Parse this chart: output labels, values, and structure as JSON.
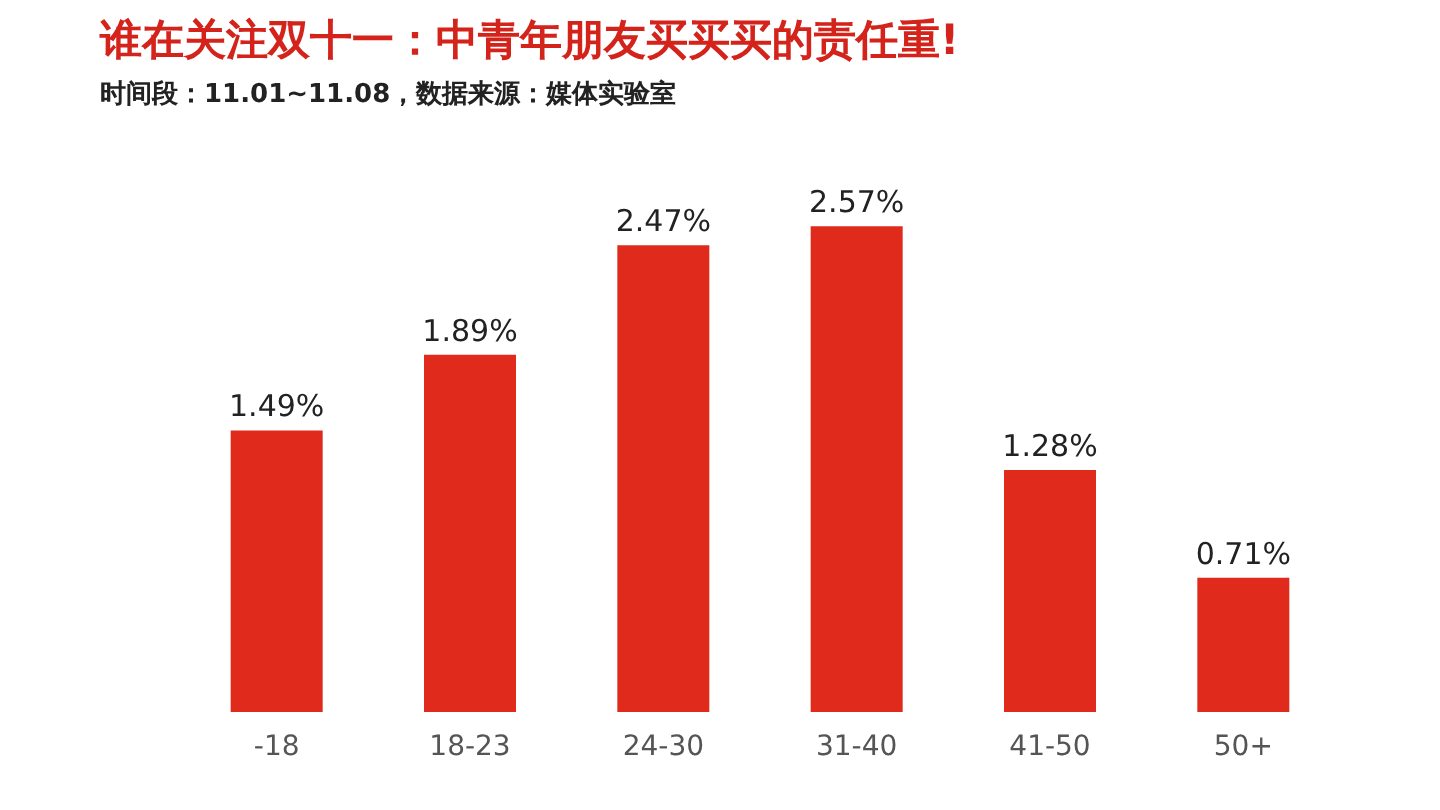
{
  "chart_data": {
    "type": "bar",
    "title": "谁在关注双十一：中青年朋友买买买的责任重!",
    "subtitle": "时间段：11.01~11.08，数据来源：媒体实验室",
    "categories": [
      "-18",
      "18-23",
      "24-30",
      "31-40",
      "41-50",
      "50+"
    ],
    "values": [
      1.49,
      1.89,
      2.47,
      2.57,
      1.28,
      0.71
    ],
    "value_labels": [
      "1.49%",
      "1.89%",
      "2.47%",
      "2.57%",
      "1.28%",
      "0.71%"
    ],
    "color": "#e02a1c",
    "grid": false,
    "tick_labels": "x"
  }
}
